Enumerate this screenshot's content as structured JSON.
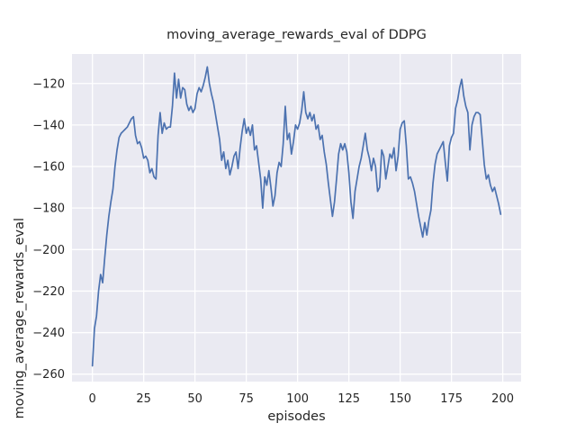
{
  "chart_data": {
    "type": "line",
    "title": "moving_average_rewards_eval of DDPG",
    "xlabel": "episodes",
    "ylabel": "moving_average_rewards_eval",
    "x_ticks": [
      0,
      25,
      50,
      75,
      100,
      125,
      150,
      175,
      200
    ],
    "y_ticks": [
      -120,
      -140,
      -160,
      -180,
      -200,
      -220,
      -240,
      -260
    ],
    "xlim": [
      -9.95,
      208.95
    ],
    "ylim": [
      -263.6,
      -105.8
    ],
    "grid": true,
    "legend_position": "none",
    "colors": {
      "line": "#4c72b0",
      "axes_background": "#eaeaf2",
      "gridline": "#ffffff",
      "figure_background": "#ffffff",
      "text": "#262626"
    },
    "series": [
      {
        "name": "moving_average_rewards_eval",
        "x_start": 0,
        "x_step": 1,
        "values": [
          -256,
          -238,
          -232,
          -220,
          -212,
          -216,
          -204,
          -193,
          -184,
          -177,
          -171,
          -160,
          -152,
          -146,
          -144,
          -143,
          -142,
          -141,
          -139,
          -137,
          -136,
          -145,
          -149,
          -148,
          -151,
          -156,
          -155,
          -157,
          -163,
          -161,
          -165,
          -166,
          -145,
          -134,
          -144,
          -139,
          -142,
          -141,
          -141,
          -131,
          -115,
          -127,
          -118,
          -127,
          -122,
          -123,
          -130,
          -133,
          -131,
          -134,
          -132,
          -125,
          -122,
          -124,
          -121,
          -117,
          -112,
          -120,
          -125,
          -129,
          -135,
          -141,
          -147,
          -157,
          -153,
          -161,
          -157,
          -164,
          -160,
          -155,
          -153,
          -161,
          -151,
          -143,
          -137,
          -144,
          -141,
          -145,
          -140,
          -152,
          -150,
          -158,
          -166,
          -180,
          -165,
          -169,
          -162,
          -170,
          -179,
          -174,
          -163,
          -158,
          -160,
          -149,
          -131,
          -147,
          -144,
          -154,
          -148,
          -140,
          -142,
          -139,
          -133,
          -124,
          -134,
          -137,
          -134,
          -138,
          -135,
          -142,
          -140,
          -147,
          -145,
          -153,
          -159,
          -168,
          -176,
          -184,
          -177,
          -166,
          -154,
          -149,
          -152,
          -149,
          -153,
          -163,
          -177,
          -185,
          -172,
          -166,
          -160,
          -156,
          -150,
          -144,
          -152,
          -156,
          -162,
          -156,
          -160,
          -172,
          -170,
          -152,
          -155,
          -166,
          -160,
          -154,
          -156,
          -151,
          -162,
          -155,
          -142,
          -139,
          -138,
          -150,
          -166,
          -165,
          -168,
          -172,
          -178,
          -184,
          -189,
          -194,
          -187,
          -193,
          -186,
          -181,
          -168,
          -159,
          -154,
          -152,
          -150,
          -148,
          -158,
          -167,
          -150,
          -146,
          -144,
          -132,
          -128,
          -122,
          -118,
          -126,
          -131,
          -134,
          -152,
          -140,
          -136,
          -134,
          -134,
          -135,
          -147,
          -159,
          -166,
          -164,
          -169,
          -172,
          -170,
          -174,
          -178,
          -183
        ]
      }
    ]
  }
}
